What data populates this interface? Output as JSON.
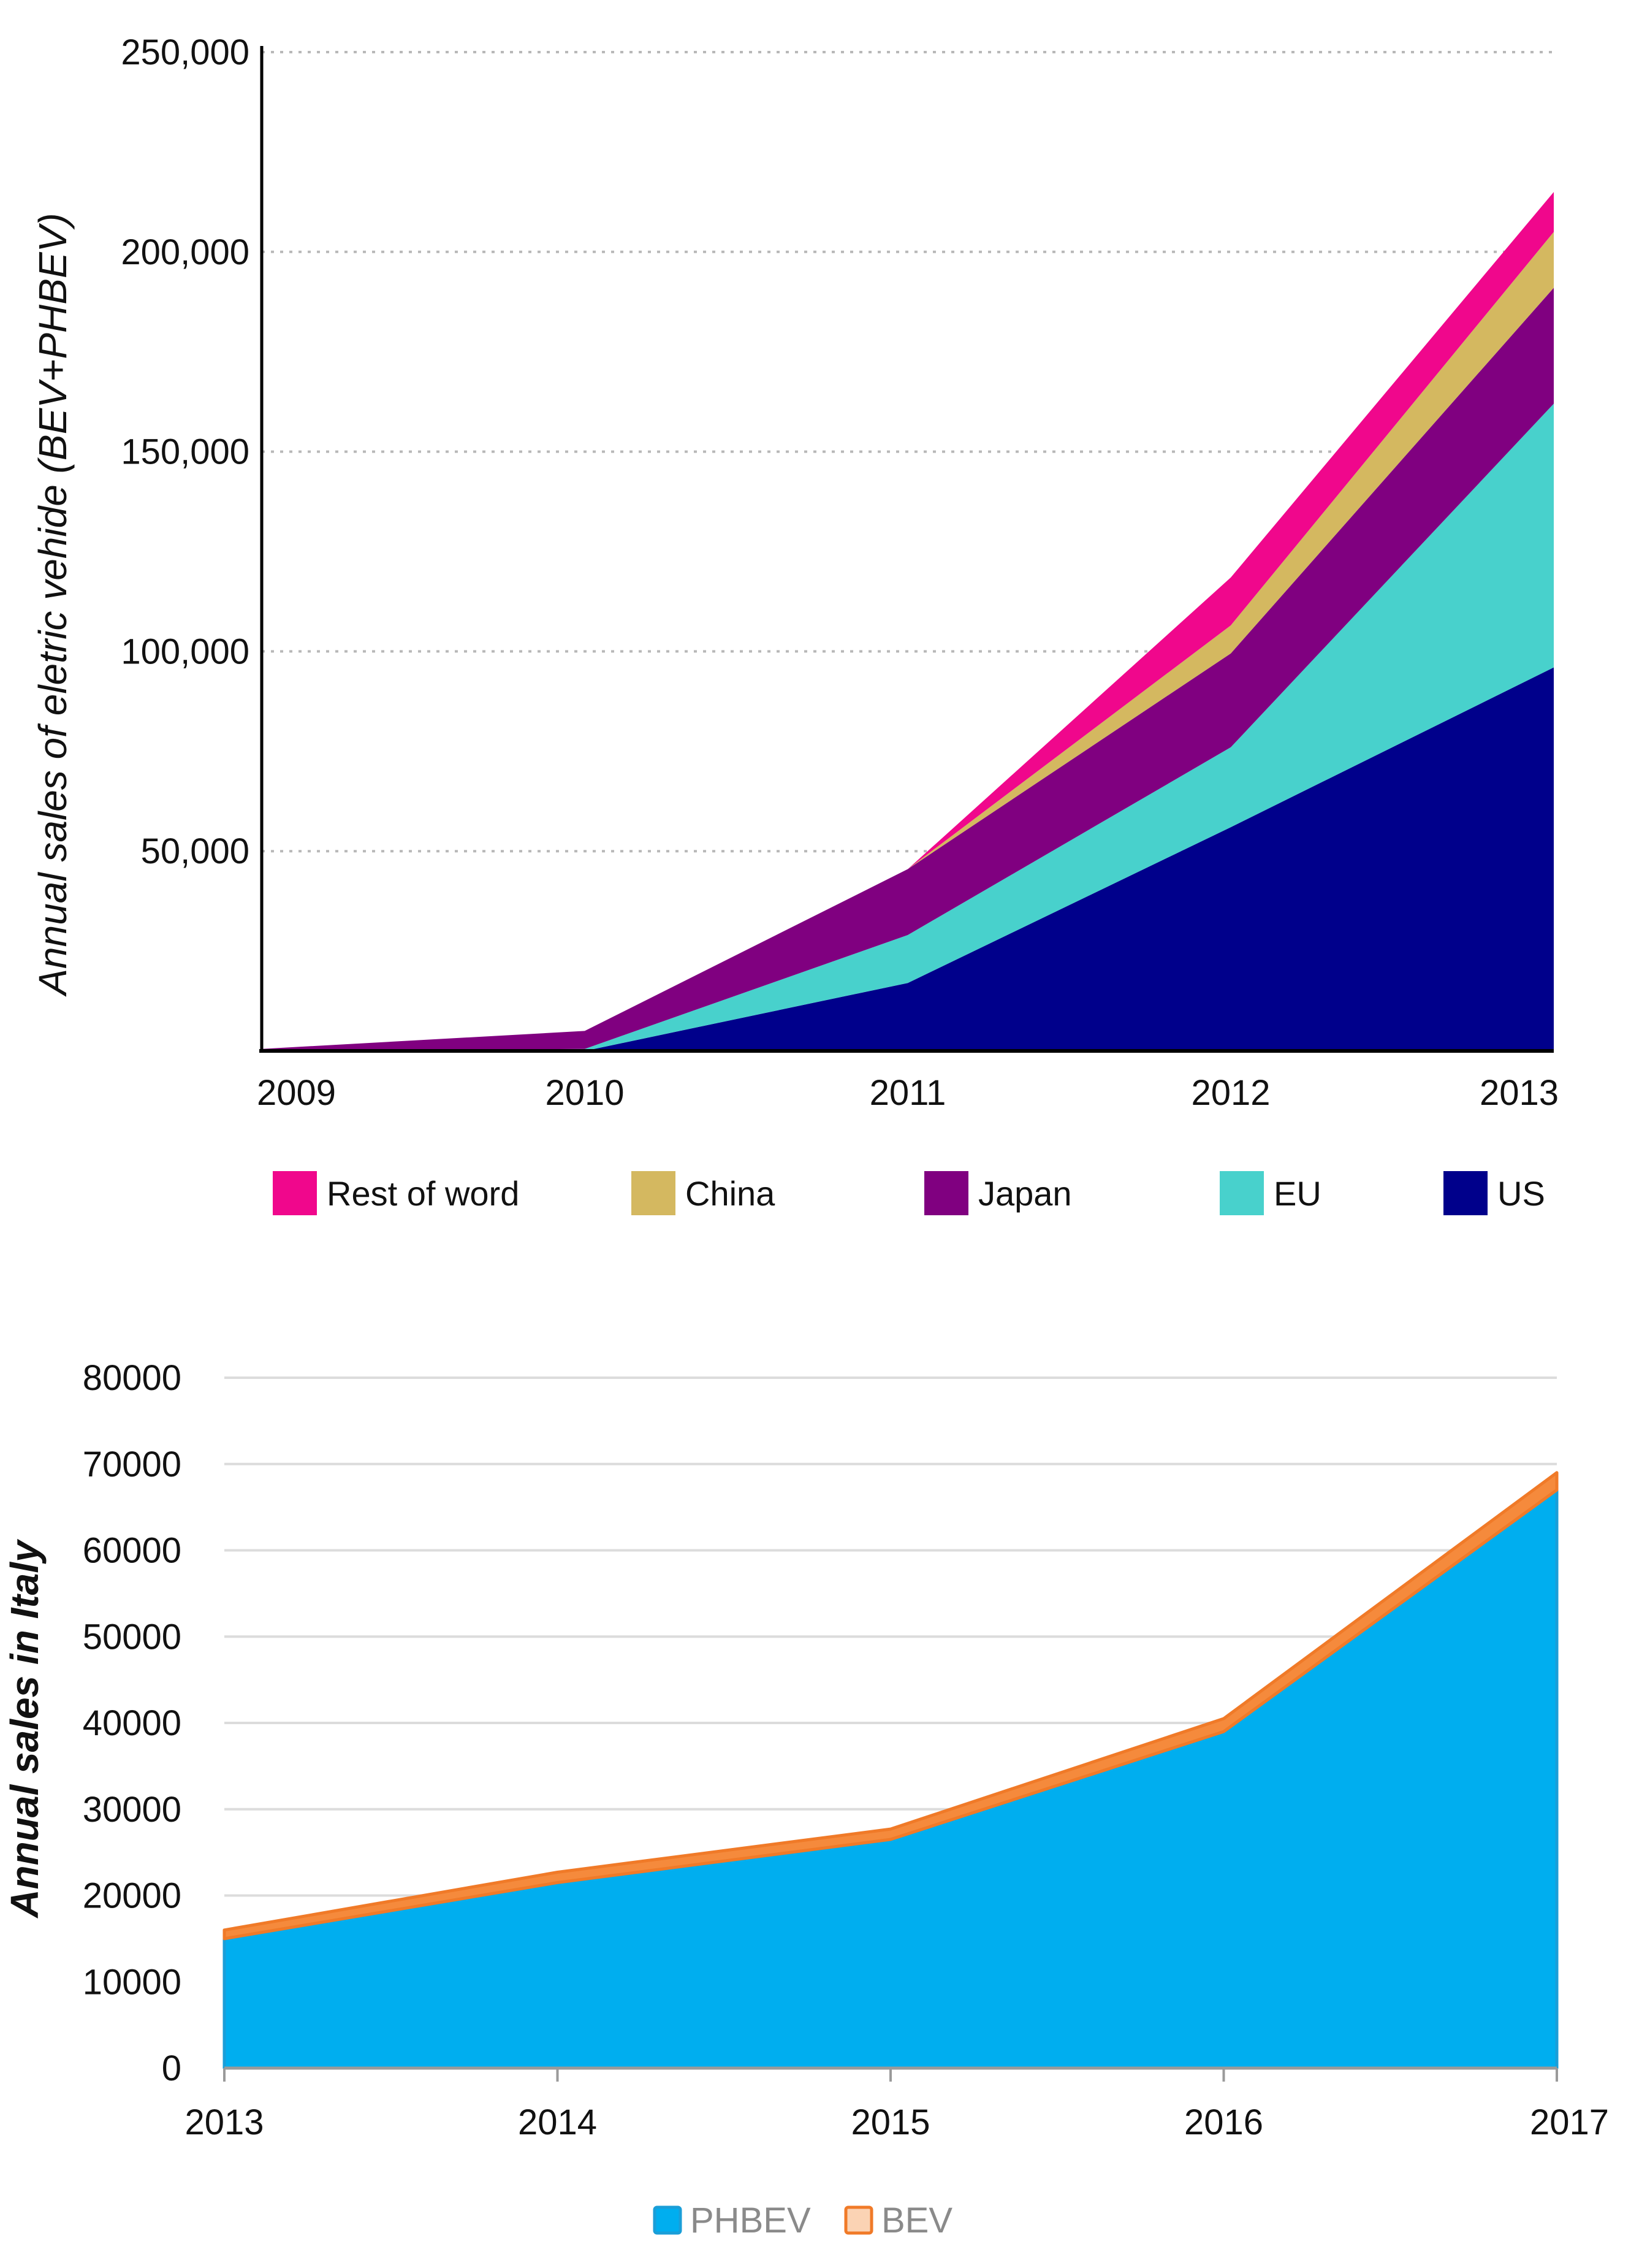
{
  "chart_data": [
    {
      "type": "area",
      "stacked": true,
      "ylabel": "Annual sales of eletric vehide (BEV+PHBEV)",
      "xlabel": "",
      "x": [
        "2009",
        "2010",
        "2011",
        "2012",
        "2013"
      ],
      "ylim": [
        0,
        250000
      ],
      "y_ticks": [
        "50,000",
        "100,000",
        "150,000",
        "200,000",
        "250,000"
      ],
      "y_tick_values": [
        50000,
        100000,
        150000,
        200000,
        250000
      ],
      "grid": "horizontal dotted",
      "legend_position": "bottom",
      "series": [
        {
          "name": "US",
          "color": "#00008b",
          "values": [
            0,
            0,
            17000,
            56000,
            96000
          ]
        },
        {
          "name": "EU",
          "color": "#48d1cc",
          "values": [
            0,
            500,
            12000,
            20000,
            66000
          ]
        },
        {
          "name": "Japan",
          "color": "#800080",
          "values": [
            500,
            4500,
            16500,
            23500,
            29000
          ]
        },
        {
          "name": "China",
          "color": "#d4b860",
          "values": [
            0,
            0,
            0,
            7000,
            14000
          ]
        },
        {
          "name": "Rest of word",
          "color": "#f0078c",
          "values": [
            0,
            0,
            0,
            12000,
            10000
          ]
        }
      ],
      "legend_order": [
        "Rest of word",
        "China",
        "Japan",
        "EU",
        "US"
      ]
    },
    {
      "type": "area",
      "stacked": true,
      "ylabel": "Annual sales in Italy",
      "xlabel": "",
      "x": [
        "2013",
        "2014",
        "2015",
        "2016",
        "2017"
      ],
      "ylim": [
        0,
        80000
      ],
      "y_ticks": [
        "0",
        "10000",
        "20000",
        "30000",
        "40000",
        "50000",
        "60000",
        "70000",
        "80000"
      ],
      "grid": "horizontal solid",
      "legend_position": "bottom",
      "series": [
        {
          "name": "PHBEV",
          "color": "#00aeef",
          "values": [
            15000,
            21500,
            26500,
            39000,
            67000
          ]
        },
        {
          "name": "BEV",
          "color": "#f58a3c",
          "values": [
            1000,
            1200,
            1200,
            1500,
            2000
          ]
        }
      ]
    }
  ]
}
